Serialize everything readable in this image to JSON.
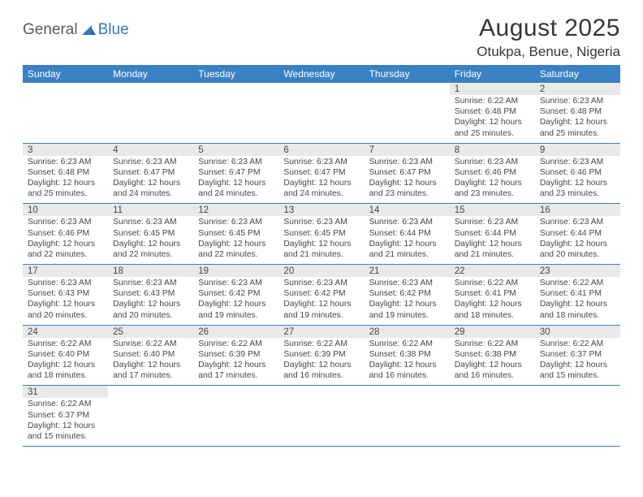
{
  "logo": {
    "part1": "General",
    "part2": "Blue"
  },
  "title": "August 2025",
  "location": "Otukpa, Benue, Nigeria",
  "colors": {
    "header_bg": "#3a81c4",
    "header_fg": "#ffffff",
    "daynum_bg": "#e9e9e9",
    "rule": "#3a81c4",
    "text": "#474747",
    "logo_gray": "#5c5c5c",
    "logo_blue": "#3478c0",
    "page_bg": "#ffffff"
  },
  "fonts": {
    "title_size_pt": 22,
    "location_size_pt": 13,
    "header_size_pt": 9,
    "daynum_size_pt": 8.5,
    "body_size_pt": 7.7
  },
  "daysOfWeek": [
    "Sunday",
    "Monday",
    "Tuesday",
    "Wednesday",
    "Thursday",
    "Friday",
    "Saturday"
  ],
  "weeks": [
    [
      null,
      null,
      null,
      null,
      null,
      {
        "n": "1",
        "sunrise": "6:22 AM",
        "sunset": "6:48 PM",
        "daylight": "12 hours and 25 minutes."
      },
      {
        "n": "2",
        "sunrise": "6:23 AM",
        "sunset": "6:48 PM",
        "daylight": "12 hours and 25 minutes."
      }
    ],
    [
      {
        "n": "3",
        "sunrise": "6:23 AM",
        "sunset": "6:48 PM",
        "daylight": "12 hours and 25 minutes."
      },
      {
        "n": "4",
        "sunrise": "6:23 AM",
        "sunset": "6:47 PM",
        "daylight": "12 hours and 24 minutes."
      },
      {
        "n": "5",
        "sunrise": "6:23 AM",
        "sunset": "6:47 PM",
        "daylight": "12 hours and 24 minutes."
      },
      {
        "n": "6",
        "sunrise": "6:23 AM",
        "sunset": "6:47 PM",
        "daylight": "12 hours and 24 minutes."
      },
      {
        "n": "7",
        "sunrise": "6:23 AM",
        "sunset": "6:47 PM",
        "daylight": "12 hours and 23 minutes."
      },
      {
        "n": "8",
        "sunrise": "6:23 AM",
        "sunset": "6:46 PM",
        "daylight": "12 hours and 23 minutes."
      },
      {
        "n": "9",
        "sunrise": "6:23 AM",
        "sunset": "6:46 PM",
        "daylight": "12 hours and 23 minutes."
      }
    ],
    [
      {
        "n": "10",
        "sunrise": "6:23 AM",
        "sunset": "6:46 PM",
        "daylight": "12 hours and 22 minutes."
      },
      {
        "n": "11",
        "sunrise": "6:23 AM",
        "sunset": "6:45 PM",
        "daylight": "12 hours and 22 minutes."
      },
      {
        "n": "12",
        "sunrise": "6:23 AM",
        "sunset": "6:45 PM",
        "daylight": "12 hours and 22 minutes."
      },
      {
        "n": "13",
        "sunrise": "6:23 AM",
        "sunset": "6:45 PM",
        "daylight": "12 hours and 21 minutes."
      },
      {
        "n": "14",
        "sunrise": "6:23 AM",
        "sunset": "6:44 PM",
        "daylight": "12 hours and 21 minutes."
      },
      {
        "n": "15",
        "sunrise": "6:23 AM",
        "sunset": "6:44 PM",
        "daylight": "12 hours and 21 minutes."
      },
      {
        "n": "16",
        "sunrise": "6:23 AM",
        "sunset": "6:44 PM",
        "daylight": "12 hours and 20 minutes."
      }
    ],
    [
      {
        "n": "17",
        "sunrise": "6:23 AM",
        "sunset": "6:43 PM",
        "daylight": "12 hours and 20 minutes."
      },
      {
        "n": "18",
        "sunrise": "6:23 AM",
        "sunset": "6:43 PM",
        "daylight": "12 hours and 20 minutes."
      },
      {
        "n": "19",
        "sunrise": "6:23 AM",
        "sunset": "6:42 PM",
        "daylight": "12 hours and 19 minutes."
      },
      {
        "n": "20",
        "sunrise": "6:23 AM",
        "sunset": "6:42 PM",
        "daylight": "12 hours and 19 minutes."
      },
      {
        "n": "21",
        "sunrise": "6:23 AM",
        "sunset": "6:42 PM",
        "daylight": "12 hours and 19 minutes."
      },
      {
        "n": "22",
        "sunrise": "6:22 AM",
        "sunset": "6:41 PM",
        "daylight": "12 hours and 18 minutes."
      },
      {
        "n": "23",
        "sunrise": "6:22 AM",
        "sunset": "6:41 PM",
        "daylight": "12 hours and 18 minutes."
      }
    ],
    [
      {
        "n": "24",
        "sunrise": "6:22 AM",
        "sunset": "6:40 PM",
        "daylight": "12 hours and 18 minutes."
      },
      {
        "n": "25",
        "sunrise": "6:22 AM",
        "sunset": "6:40 PM",
        "daylight": "12 hours and 17 minutes."
      },
      {
        "n": "26",
        "sunrise": "6:22 AM",
        "sunset": "6:39 PM",
        "daylight": "12 hours and 17 minutes."
      },
      {
        "n": "27",
        "sunrise": "6:22 AM",
        "sunset": "6:39 PM",
        "daylight": "12 hours and 16 minutes."
      },
      {
        "n": "28",
        "sunrise": "6:22 AM",
        "sunset": "6:38 PM",
        "daylight": "12 hours and 16 minutes."
      },
      {
        "n": "29",
        "sunrise": "6:22 AM",
        "sunset": "6:38 PM",
        "daylight": "12 hours and 16 minutes."
      },
      {
        "n": "30",
        "sunrise": "6:22 AM",
        "sunset": "6:37 PM",
        "daylight": "12 hours and 15 minutes."
      }
    ],
    [
      {
        "n": "31",
        "sunrise": "6:22 AM",
        "sunset": "6:37 PM",
        "daylight": "12 hours and 15 minutes."
      },
      null,
      null,
      null,
      null,
      null,
      null
    ]
  ],
  "labels": {
    "sunrise_prefix": "Sunrise: ",
    "sunset_prefix": "Sunset: ",
    "daylight_prefix": "Daylight: "
  }
}
